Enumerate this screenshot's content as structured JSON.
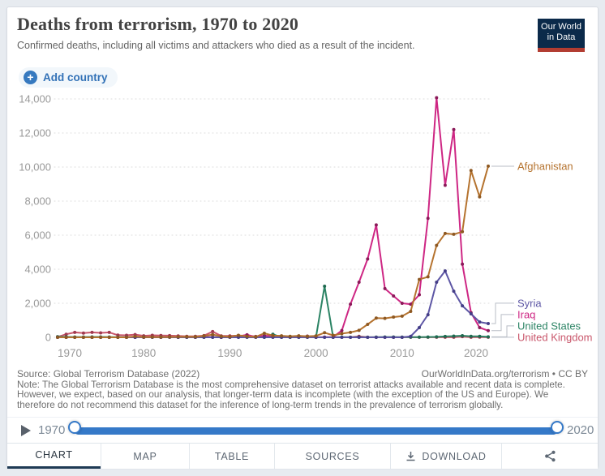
{
  "header": {
    "logo": {
      "line1": "Our World",
      "line2": "in Data"
    }
  },
  "controls": {
    "add_country_label": "Add country",
    "plus_glyph": "+"
  },
  "chart_data": {
    "type": "line",
    "title": "Deaths from terrorism, 1970 to 2020",
    "subtitle": "Confirmed deaths, including all victims and attackers who died as a result of the incident.",
    "grid": true,
    "legend_position": "right-entity-labels",
    "xlim": [
      1970,
      2020
    ],
    "ylim": [
      0,
      14000
    ],
    "xticks": [
      {
        "value": 1970,
        "label": "1970"
      },
      {
        "value": 1980,
        "label": "1980"
      },
      {
        "value": 1990,
        "label": "1990"
      },
      {
        "value": 2000,
        "label": "2000"
      },
      {
        "value": 2010,
        "label": "2010"
      },
      {
        "value": 2020,
        "label": "2020"
      }
    ],
    "yticks": [
      {
        "value": 0,
        "label": "0"
      },
      {
        "value": 2000,
        "label": "2,000"
      },
      {
        "value": 4000,
        "label": "4,000"
      },
      {
        "value": 6000,
        "label": "6,000"
      },
      {
        "value": 8000,
        "label": "8,000"
      },
      {
        "value": 10000,
        "label": "10,000"
      },
      {
        "value": 12000,
        "label": "12,000"
      },
      {
        "value": 14000,
        "label": "14,000"
      }
    ],
    "x": [
      1970,
      1971,
      1972,
      1973,
      1974,
      1975,
      1976,
      1977,
      1978,
      1979,
      1980,
      1981,
      1982,
      1983,
      1984,
      1985,
      1986,
      1987,
      1988,
      1989,
      1990,
      1991,
      1992,
      1993,
      1994,
      1995,
      1996,
      1997,
      1998,
      1999,
      2000,
      2001,
      2002,
      2003,
      2004,
      2005,
      2006,
      2007,
      2008,
      2009,
      2010,
      2011,
      2012,
      2013,
      2014,
      2015,
      2016,
      2017,
      2018,
      2019,
      2020
    ],
    "series": [
      {
        "name": "United Kingdom",
        "color": "#C9566B",
        "marker_color": "#A03A50",
        "values": [
          30,
          180,
          290,
          250,
          290,
          260,
          290,
          130,
          120,
          160,
          90,
          120,
          110,
          100,
          80,
          60,
          60,
          100,
          340,
          80,
          80,
          100,
          90,
          50,
          60,
          20,
          20,
          40,
          60,
          10,
          5,
          5,
          5,
          5,
          5,
          60,
          5,
          5,
          5,
          5,
          5,
          5,
          5,
          5,
          5,
          5,
          5,
          45,
          5,
          10,
          5
        ]
      },
      {
        "name": "United States",
        "color": "#2C8465",
        "marker_color": "#1F6A50",
        "values": [
          35,
          30,
          20,
          20,
          25,
          25,
          20,
          10,
          10,
          5,
          10,
          5,
          10,
          10,
          5,
          5,
          5,
          5,
          5,
          5,
          10,
          5,
          30,
          10,
          5,
          180,
          5,
          5,
          5,
          15,
          5,
          3000,
          5,
          10,
          5,
          10,
          5,
          10,
          20,
          20,
          15,
          10,
          15,
          20,
          30,
          50,
          70,
          95,
          60,
          55,
          30
        ]
      },
      {
        "name": "Iraq",
        "color": "#CE2784",
        "marker_color": "#8B1A59",
        "values": [
          0,
          0,
          0,
          0,
          0,
          0,
          0,
          0,
          0,
          0,
          0,
          20,
          0,
          10,
          0,
          10,
          0,
          30,
          10,
          0,
          10,
          60,
          150,
          20,
          100,
          60,
          30,
          40,
          40,
          70,
          0,
          10,
          15,
          400,
          1950,
          3240,
          4600,
          6600,
          2860,
          2430,
          2000,
          1950,
          2500,
          6990,
          14070,
          8930,
          12200,
          4300,
          1450,
          570,
          390
        ]
      },
      {
        "name": "Syria",
        "color": "#5E57A5",
        "marker_color": "#453E87",
        "values": [
          0,
          0,
          0,
          0,
          0,
          0,
          0,
          0,
          0,
          0,
          0,
          0,
          0,
          0,
          0,
          0,
          0,
          0,
          0,
          0,
          0,
          0,
          0,
          0,
          0,
          0,
          0,
          0,
          0,
          0,
          0,
          0,
          0,
          0,
          0,
          0,
          0,
          0,
          0,
          0,
          0,
          60,
          570,
          1330,
          3240,
          3900,
          2710,
          1850,
          1380,
          900,
          810
        ]
      },
      {
        "name": "Afghanistan",
        "color": "#B5732F",
        "marker_color": "#8E5923",
        "values": [
          0,
          0,
          0,
          0,
          0,
          0,
          0,
          0,
          0,
          50,
          10,
          20,
          10,
          20,
          30,
          40,
          30,
          80,
          160,
          60,
          40,
          120,
          60,
          30,
          240,
          100,
          90,
          60,
          90,
          60,
          80,
          270,
          120,
          220,
          290,
          410,
          760,
          1130,
          1115,
          1190,
          1245,
          1525,
          3400,
          3550,
          5400,
          6100,
          6050,
          6200,
          9800,
          8250,
          10050
        ]
      }
    ]
  },
  "footer": {
    "source": "Source: Global Terrorism Database (2022)",
    "attribution": "OurWorldInData.org/terrorism • CC BY",
    "note": "Note: The Global Terrorism Database is the most comprehensive dataset on terrorist attacks available and recent data is complete. However, we expect, based on our analysis, that longer-term data is incomplete (with the exception of the US and Europe). We therefore do not recommend this dataset for the inference of long-term trends in the prevalence of terrorism globally."
  },
  "timeline": {
    "start_year": "1970",
    "end_year": "2020"
  },
  "tabs": {
    "items": [
      {
        "label": "CHART",
        "active": true
      },
      {
        "label": "MAP",
        "active": false
      },
      {
        "label": "TABLE",
        "active": false
      },
      {
        "label": "SOURCES",
        "active": false
      },
      {
        "label": "DOWNLOAD",
        "active": false,
        "icon": "download"
      }
    ]
  },
  "colors": {
    "accent_blue": "#3579C8",
    "logo_navy": "#0B2A4A",
    "logo_red": "#B23C31",
    "active_tab_underline": "#1F3A54",
    "gridline": "#DBDBDB",
    "axis_label": "#9A9A9A"
  }
}
